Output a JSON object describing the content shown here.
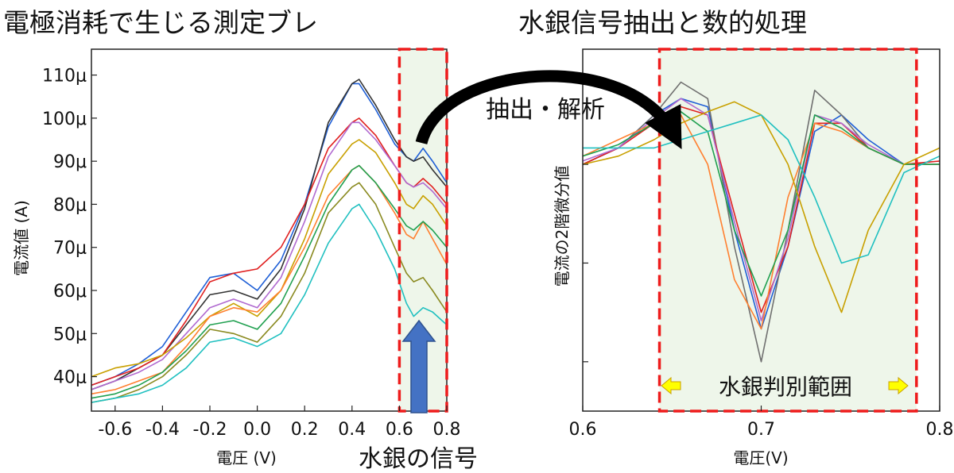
{
  "titles": {
    "left": "電極消耗で生じる測定ブレ",
    "right": "水銀信号抽出と数的処理"
  },
  "annotations": {
    "extract": "抽出・解析",
    "mercury_signal": "水銀の信号",
    "mercury_range": "水銀判別範囲"
  },
  "colors": {
    "highlight_fill": "#eef6ea",
    "highlight_border": "#ee1c1c",
    "arrow_black": "#000000",
    "arrow_blue": "#4472c4",
    "arrow_blue_edge": "#2f528f",
    "range_arrow": "#ffff00",
    "range_arrow_edge": "#c9a100"
  },
  "chart_data": [
    {
      "type": "line",
      "title": "",
      "xlabel": "電圧 (V)",
      "ylabel": "電流値 (A)",
      "xlim": [
        -0.7,
        0.8
      ],
      "ylim": [
        32,
        116
      ],
      "x_ticks": [
        -0.6,
        -0.4,
        -0.2,
        0.0,
        0.2,
        0.4,
        0.6,
        0.8
      ],
      "x_tick_labels": [
        "-0.6",
        "-0.4",
        "-0.2",
        "0.0",
        "0.2",
        "0.4",
        "0.6",
        "0.8"
      ],
      "y_ticks": [
        40,
        50,
        60,
        70,
        80,
        90,
        100,
        110
      ],
      "y_tick_labels": [
        "40μ",
        "50μ",
        "60μ",
        "70μ",
        "80μ",
        "90μ",
        "100μ",
        "110μ"
      ],
      "highlight_range": [
        0.6,
        0.8
      ],
      "x": [
        -0.7,
        -0.6,
        -0.5,
        -0.4,
        -0.3,
        -0.2,
        -0.1,
        0.0,
        0.1,
        0.2,
        0.3,
        0.4,
        0.43,
        0.5,
        0.58,
        0.63,
        0.66,
        0.7,
        0.74,
        0.8
      ],
      "series": [
        {
          "color": "#1f5fd6",
          "values": [
            38,
            40,
            43,
            47,
            55,
            63,
            64,
            60,
            67,
            80,
            98,
            108,
            108,
            102,
            94,
            91,
            90,
            93,
            90,
            85
          ]
        },
        {
          "color": "#333333",
          "values": [
            37,
            39,
            42,
            45,
            52,
            59,
            60,
            58,
            65,
            79,
            99,
            108,
            109,
            103,
            95,
            91,
            90,
            91,
            88,
            84
          ]
        },
        {
          "color": "#e02020",
          "values": [
            38,
            40,
            42,
            45,
            53,
            62,
            64,
            65,
            70,
            80,
            93,
            99,
            100,
            96,
            89,
            85,
            84,
            86,
            84,
            80
          ]
        },
        {
          "color": "#b06ad0",
          "values": [
            37,
            39,
            41,
            44,
            50,
            56,
            58,
            56,
            63,
            76,
            91,
            99,
            99,
            95,
            89,
            85,
            84,
            85,
            83,
            79
          ]
        },
        {
          "color": "#c8a000",
          "values": [
            40,
            42,
            43,
            45,
            49,
            54,
            57,
            54,
            60,
            72,
            87,
            94,
            95,
            92,
            85,
            80,
            79,
            82,
            80,
            75
          ]
        },
        {
          "color": "#ff8030",
          "values": [
            36,
            37,
            39,
            41,
            47,
            54,
            56,
            55,
            60,
            70,
            82,
            88,
            89,
            85,
            78,
            73,
            72,
            76,
            72,
            66
          ]
        },
        {
          "color": "#20a050",
          "values": [
            35,
            36,
            38,
            41,
            46,
            52,
            53,
            51,
            57,
            68,
            80,
            88,
            89,
            85,
            79,
            75,
            74,
            76,
            74,
            70
          ]
        },
        {
          "color": "#8a8a20",
          "values": [
            34,
            35,
            37,
            40,
            45,
            51,
            50,
            48,
            54,
            64,
            78,
            84,
            85,
            80,
            70,
            64,
            62,
            63,
            60,
            55
          ]
        },
        {
          "color": "#20c0c0",
          "values": [
            34,
            35,
            36,
            38,
            42,
            48,
            49,
            47,
            50,
            59,
            71,
            79,
            80,
            74,
            65,
            57,
            54,
            56,
            55,
            52
          ]
        }
      ]
    },
    {
      "type": "line",
      "title": "",
      "xlabel": "電圧(V)",
      "ylabel": "電流の2階微分値",
      "xlim": [
        0.6,
        0.8
      ],
      "ylim": [
        -1.2,
        1.0
      ],
      "x_ticks": [
        0.6,
        0.7,
        0.8
      ],
      "x_tick_labels": [
        "0.6",
        "0.7",
        "0.8"
      ],
      "highlight_range": [
        0.643,
        0.787
      ],
      "x": [
        0.6,
        0.62,
        0.64,
        0.655,
        0.67,
        0.685,
        0.7,
        0.715,
        0.73,
        0.745,
        0.76,
        0.78,
        0.8
      ],
      "series": [
        {
          "color": "#1f5fd6",
          "values": [
            0.3,
            0.4,
            0.6,
            0.7,
            0.65,
            -0.1,
            -0.7,
            -0.2,
            0.5,
            0.6,
            0.45,
            0.3,
            0.3
          ]
        },
        {
          "color": "#707070",
          "values": [
            0.3,
            0.4,
            0.6,
            0.8,
            0.7,
            -0.2,
            -0.9,
            -0.1,
            0.75,
            0.6,
            0.4,
            0.3,
            0.3
          ]
        },
        {
          "color": "#e02020",
          "values": [
            0.3,
            0.4,
            0.55,
            0.65,
            0.6,
            0.0,
            -0.6,
            -0.2,
            0.55,
            0.55,
            0.4,
            0.3,
            0.32
          ]
        },
        {
          "color": "#b06ad0",
          "values": [
            0.32,
            0.4,
            0.58,
            0.7,
            0.6,
            -0.05,
            -0.65,
            -0.15,
            0.6,
            0.55,
            0.42,
            0.3,
            0.3
          ]
        },
        {
          "color": "#ff8030",
          "values": [
            0.35,
            0.45,
            0.55,
            0.6,
            0.3,
            -0.4,
            -0.7,
            0.1,
            0.55,
            0.5,
            0.4,
            0.3,
            0.3
          ]
        },
        {
          "color": "#20a050",
          "values": [
            0.35,
            0.42,
            0.55,
            0.62,
            0.5,
            -0.1,
            -0.5,
            -0.1,
            0.6,
            0.52,
            0.4,
            0.3,
            0.3
          ]
        },
        {
          "color": "#c8a000",
          "values": [
            0.3,
            0.35,
            0.45,
            0.55,
            0.62,
            0.68,
            0.6,
            0.3,
            -0.2,
            -0.6,
            -0.1,
            0.3,
            0.4
          ]
        },
        {
          "color": "#20c0c0",
          "values": [
            0.4,
            0.4,
            0.4,
            0.45,
            0.5,
            0.55,
            0.6,
            0.45,
            0.1,
            -0.3,
            -0.25,
            0.25,
            0.35
          ]
        }
      ]
    }
  ]
}
